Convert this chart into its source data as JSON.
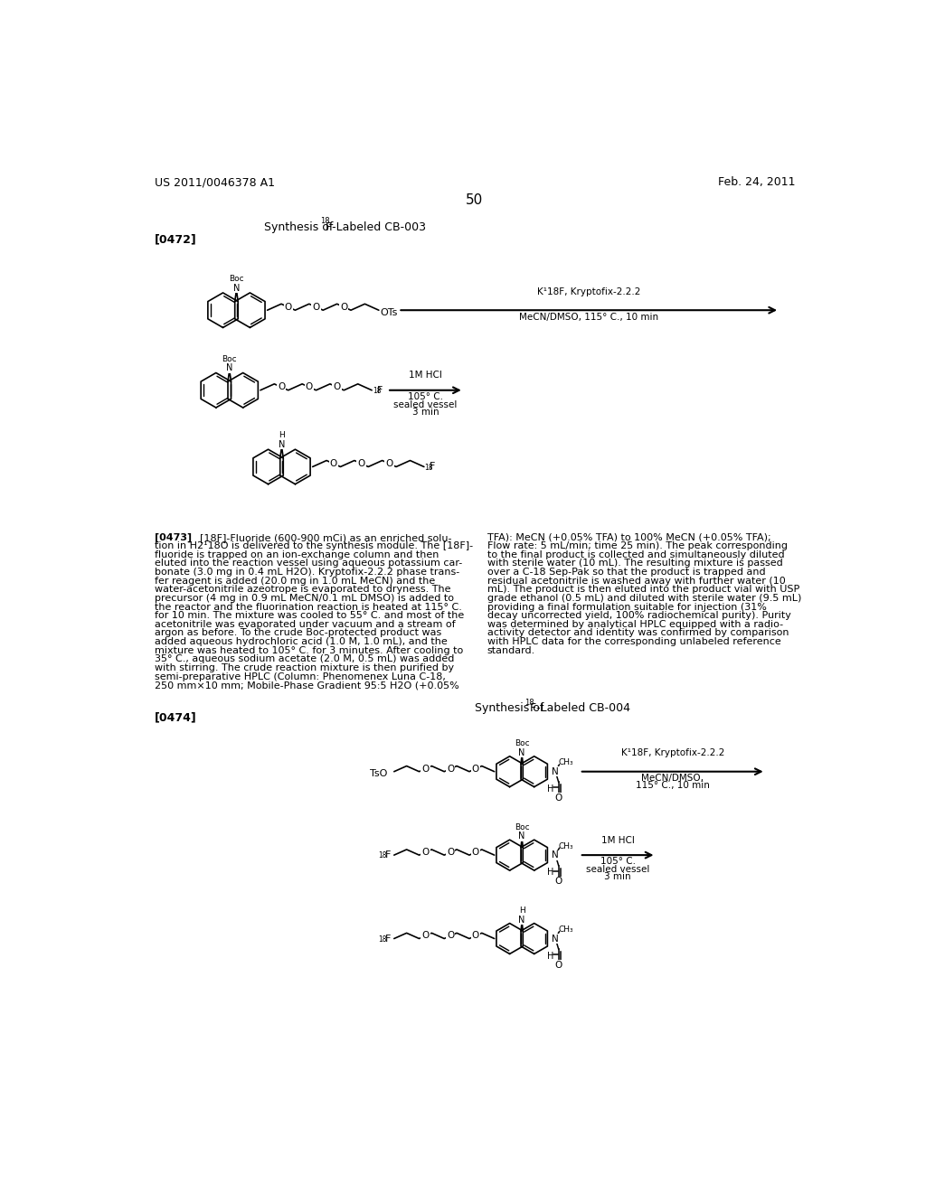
{
  "page_number": "50",
  "header_left": "US 2011/0046378 A1",
  "header_right": "Feb. 24, 2011",
  "bg_color": "#ffffff",
  "text_color": "#000000",
  "left_lines": [
    "[18F]-Fluoride (600-900 mCi) as an enriched solu-",
    "tion in H2¹18O is delivered to the synthesis module. The [18F]-",
    "fluoride is trapped on an ion-exchange column and then",
    "eluted into the reaction vessel using aqueous potassium car-",
    "bonate (3.0 mg in 0.4 mL H2O). Kryptofix-2.2.2 phase trans-",
    "fer reagent is added (20.0 mg in 1.0 mL MeCN) and the",
    "water-acetonitrile azeotrope is evaporated to dryness. The",
    "precursor (4 mg in 0.9 mL MeCN/0.1 mL DMSO) is added to",
    "the reactor and the fluorination reaction is heated at 115° C.",
    "for 10 min. The mixture was cooled to 55° C. and most of the",
    "acetonitrile was evaporated under vacuum and a stream of",
    "argon as before. To the crude Boc-protected product was",
    "added aqueous hydrochloric acid (1.0 M, 1.0 mL), and the",
    "mixture was heated to 105° C. for 3 minutes. After cooling to",
    "35° C., aqueous sodium acetate (2.0 M, 0.5 mL) was added",
    "with stirring. The crude reaction mixture is then purified by",
    "semi-preparative HPLC (Column: Phenomenex Luna C-18,",
    "250 mm×10 mm; Mobile-Phase Gradient 95:5 H2O (+0.05%"
  ],
  "right_lines": [
    "TFA): MeCN (+0.05% TFA) to 100% MeCN (+0.05% TFA);",
    "Flow rate: 5 mL/min; time 25 min). The peak corresponding",
    "to the final product is collected and simultaneously diluted",
    "with sterile water (10 mL). The resulting mixture is passed",
    "over a C-18 Sep-Pak so that the product is trapped and",
    "residual acetonitrile is washed away with further water (10",
    "mL). The product is then eluted into the product vial with USP",
    "grade ethanol (0.5 mL) and diluted with sterile water (9.5 mL)",
    "providing a final formulation suitable for injection (31%",
    "decay uncorrected yield, 100% radiochemical purity). Purity",
    "was determined by analytical HPLC equipped with a radio-",
    "activity detector and identity was confirmed by comparison",
    "with HPLC data for the corresponding unlabeled reference",
    "standard."
  ]
}
